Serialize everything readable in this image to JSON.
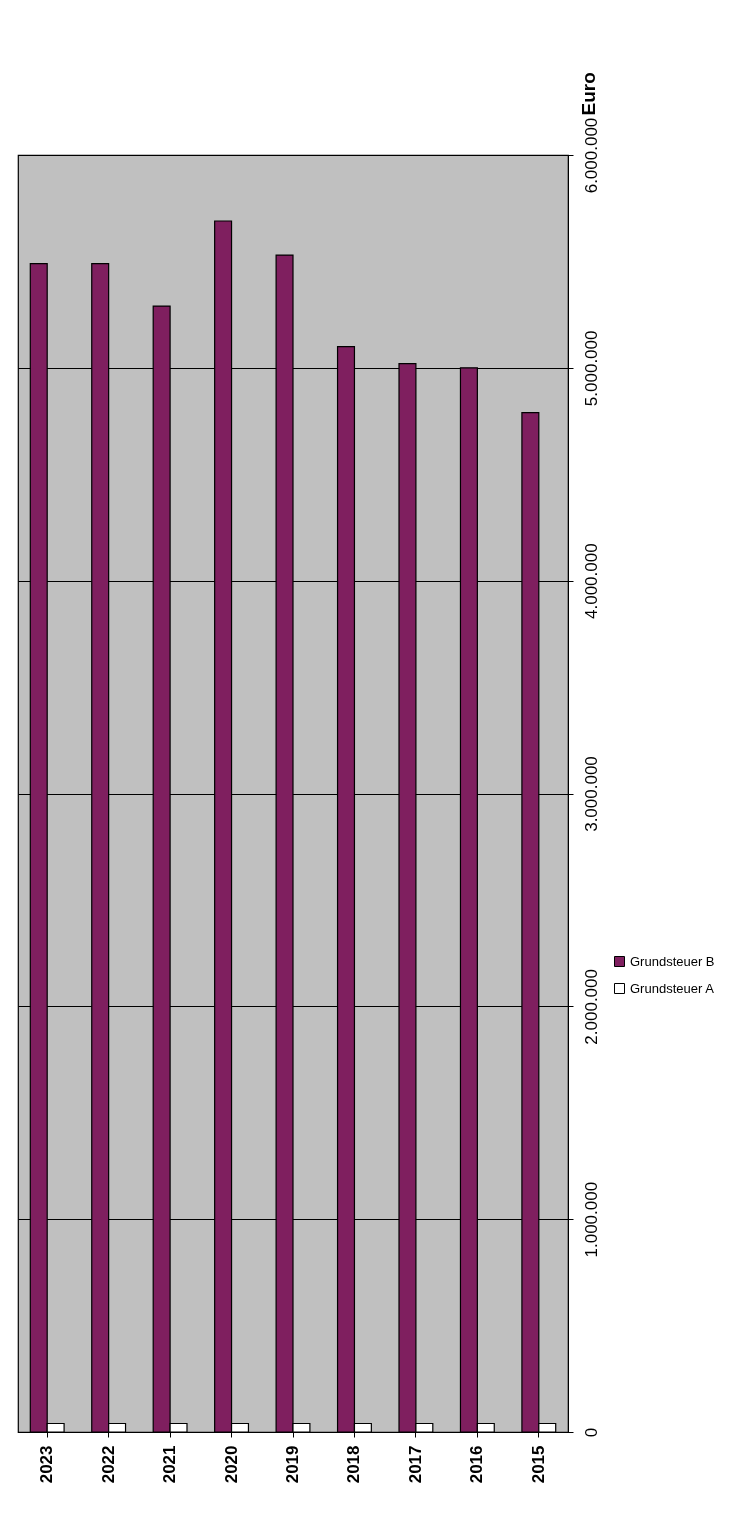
{
  "chart_data": {
    "type": "bar",
    "ylabel": "Euro",
    "categories": [
      "2023",
      "2022",
      "2021",
      "2020",
      "2019",
      "2018",
      "2017",
      "2016",
      "2015"
    ],
    "series": [
      {
        "name": "Grundsteuer B",
        "color": "#7f1f5f",
        "values": [
          5490000,
          5490000,
          5290000,
          5690000,
          5530000,
          5100000,
          5020000,
          5000000,
          4790000
        ]
      },
      {
        "name": "Grundsteuer A",
        "color": "#ffffff",
        "values": [
          40000,
          40000,
          40000,
          40000,
          40000,
          40000,
          40000,
          40000,
          40000
        ]
      }
    ],
    "ylim": [
      0,
      6000000
    ],
    "yticks": [
      0,
      {
        "value": 1000000,
        "label": "1.000.000"
      },
      {
        "value": 2000000,
        "label": "2.000.000"
      },
      {
        "value": 3000000,
        "label": "3.000.000"
      },
      {
        "value": 4000000,
        "label": "4.000.000"
      },
      {
        "value": 5000000,
        "label": "5.000.000"
      },
      {
        "value": 6000000,
        "label": "6.000.000"
      }
    ],
    "grid": "y",
    "legend": "right"
  }
}
